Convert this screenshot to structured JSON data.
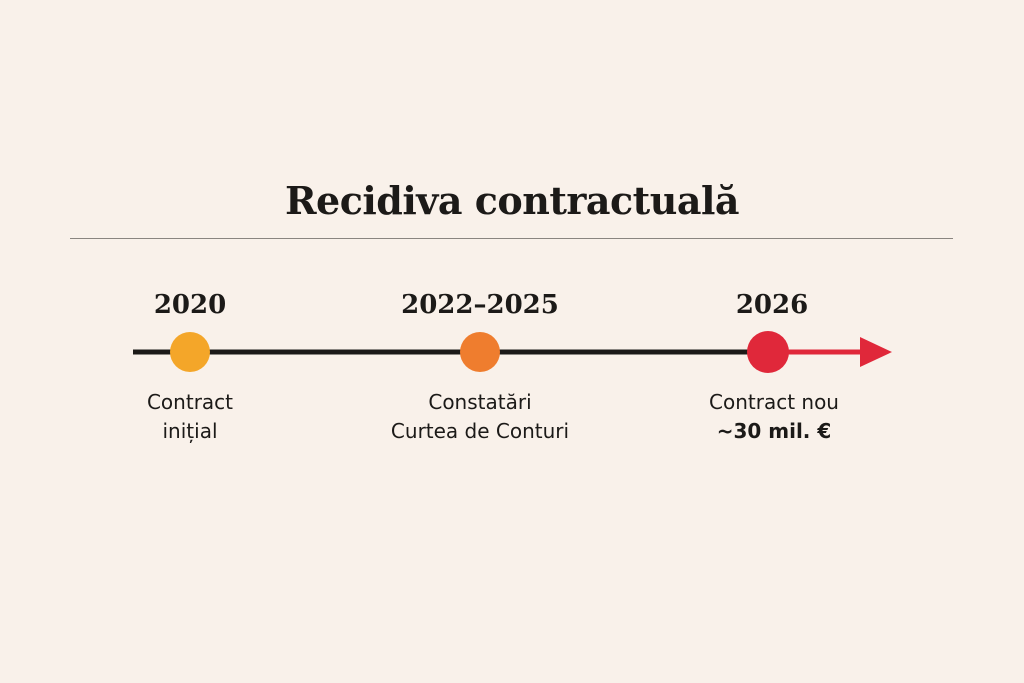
{
  "title": "Recidiva contractuală",
  "colors": {
    "background": "#f9f1ea",
    "line": "#1c1a18",
    "event1": "#f4a629",
    "event2": "#ef7d2e",
    "event3": "#e0283a"
  },
  "events": [
    {
      "year": "2020",
      "label_lines": [
        "Contract",
        "inițial"
      ]
    },
    {
      "year": "2022–2025",
      "label_lines": [
        "Constatări",
        "Curtea de Conturi"
      ]
    },
    {
      "year": "2026",
      "label_lines": [
        "Contract nou"
      ],
      "highlight": "~30 mil. €"
    }
  ]
}
